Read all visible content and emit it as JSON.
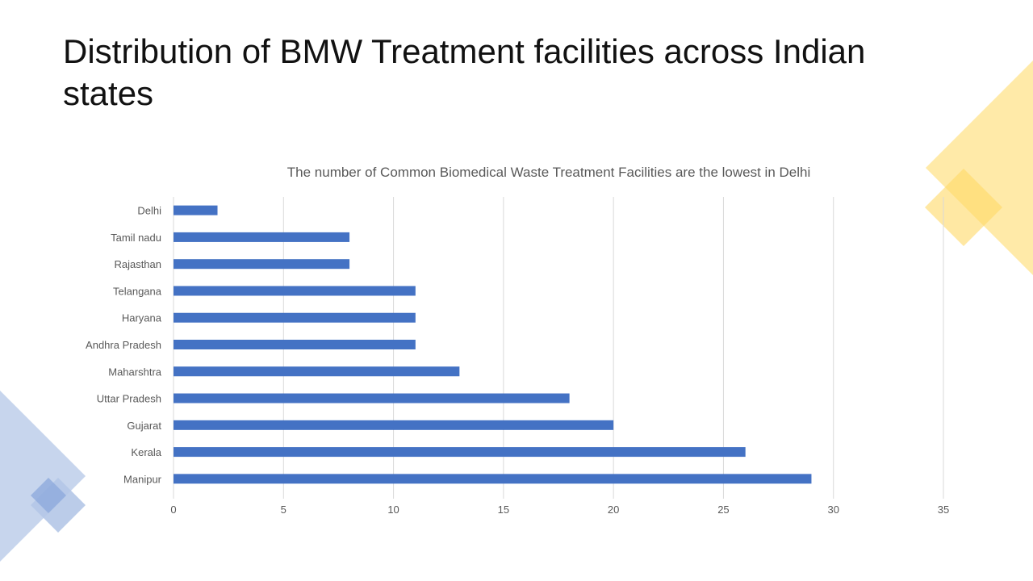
{
  "slide": {
    "title": "Distribution of BMW Treatment facilities across Indian states"
  },
  "colors": {
    "bar": "#4472C4",
    "deco_yellow": "#FFE699",
    "deco_yellow_dark": "#FFD966",
    "deco_blue": "#B4C7E7",
    "deco_blue_dark": "#8FAADC",
    "grid": "#D9D9D9",
    "label": "#595959"
  },
  "chart_data": {
    "type": "bar",
    "orientation": "horizontal",
    "title": "The number of Common Biomedical Waste Treatment Facilities are the lowest in Delhi",
    "categories": [
      "Delhi",
      "Tamil nadu",
      "Rajasthan",
      "Telangana",
      "Haryana",
      "Andhra Pradesh",
      "Maharshtra",
      "Uttar Pradesh",
      "Gujarat",
      "Kerala",
      "Manipur"
    ],
    "values": [
      2,
      8,
      8,
      11,
      11,
      11,
      13,
      18,
      20,
      26,
      29
    ],
    "xlim": [
      0,
      35
    ],
    "xticks": [
      0,
      5,
      10,
      15,
      20,
      25,
      30,
      35
    ],
    "grid": true,
    "legend": "none"
  }
}
